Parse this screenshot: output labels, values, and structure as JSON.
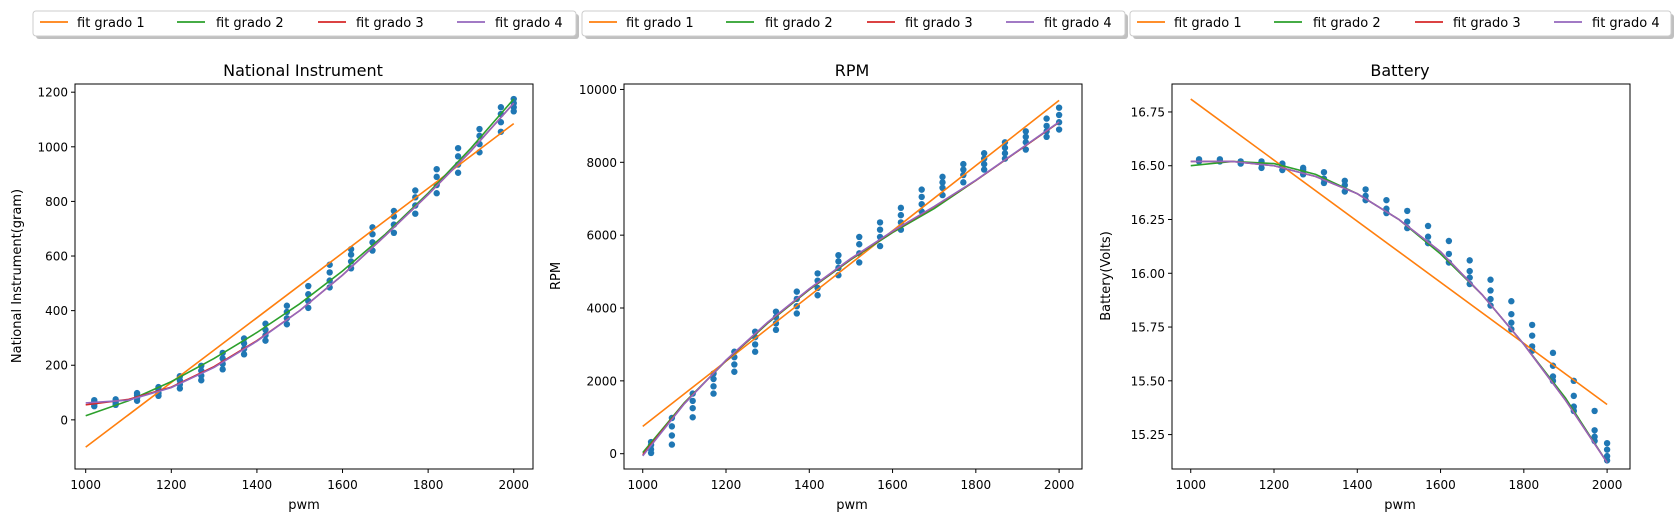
{
  "figure": {
    "background": "#ffffff",
    "fit_colors": [
      "#ff7f0e",
      "#2ca02c",
      "#d62728",
      "#9467bd"
    ],
    "point_color": "#1f77b4"
  },
  "chart_data": [
    {
      "type": "scatter",
      "title": "National Instrument",
      "xlabel": "pwm",
      "ylabel": "National Instrument(gram)",
      "xlim": [
        975,
        2045
      ],
      "ylim": [
        -180,
        1230
      ],
      "xticks": [
        1000,
        1200,
        1400,
        1600,
        1800,
        2000
      ],
      "yticks": [
        0,
        200,
        400,
        600,
        800,
        1000,
        1200
      ],
      "ytick_labels": [
        "0",
        "200",
        "400",
        "600",
        "800",
        "1000",
        "1200"
      ],
      "legend_position": "above",
      "legend": [
        "fit grado 1",
        "fit grado 2",
        "fit grado 3",
        "fit grado 4"
      ],
      "scatter": [
        {
          "x": 1020,
          "y": [
            50,
            58,
            65,
            72
          ]
        },
        {
          "x": 1070,
          "y": [
            55,
            62,
            68,
            75
          ]
        },
        {
          "x": 1120,
          "y": [
            70,
            80,
            90,
            98
          ]
        },
        {
          "x": 1170,
          "y": [
            88,
            98,
            110,
            120
          ]
        },
        {
          "x": 1220,
          "y": [
            115,
            130,
            145,
            160
          ]
        },
        {
          "x": 1270,
          "y": [
            145,
            162,
            180,
            198
          ]
        },
        {
          "x": 1320,
          "y": [
            185,
            205,
            225,
            245
          ]
        },
        {
          "x": 1370,
          "y": [
            240,
            260,
            280,
            298
          ]
        },
        {
          "x": 1420,
          "y": [
            290,
            310,
            330,
            352
          ]
        },
        {
          "x": 1470,
          "y": [
            350,
            372,
            395,
            418
          ]
        },
        {
          "x": 1520,
          "y": [
            410,
            435,
            460,
            490
          ]
        },
        {
          "x": 1570,
          "y": [
            485,
            510,
            540,
            568
          ]
        },
        {
          "x": 1620,
          "y": [
            555,
            580,
            605,
            625
          ]
        },
        {
          "x": 1670,
          "y": [
            620,
            650,
            680,
            705
          ]
        },
        {
          "x": 1720,
          "y": [
            685,
            715,
            745,
            765
          ]
        },
        {
          "x": 1770,
          "y": [
            755,
            785,
            815,
            840
          ]
        },
        {
          "x": 1820,
          "y": [
            830,
            860,
            890,
            918
          ]
        },
        {
          "x": 1870,
          "y": [
            905,
            935,
            965,
            995
          ]
        },
        {
          "x": 1920,
          "y": [
            980,
            1010,
            1040,
            1065
          ]
        },
        {
          "x": 1970,
          "y": [
            1055,
            1090,
            1120,
            1145
          ]
        },
        {
          "x": 2000,
          "y": [
            1130,
            1145,
            1160,
            1175
          ]
        }
      ],
      "fits": [
        {
          "name": "fit grado 1",
          "x": [
            1000,
            2000
          ],
          "y": [
            -100,
            1085
          ]
        },
        {
          "name": "fit grado 2",
          "x": [
            1000,
            1100,
            1200,
            1300,
            1400,
            1500,
            1600,
            1700,
            1800,
            1900,
            2000
          ],
          "y": [
            15,
            70,
            140,
            225,
            320,
            425,
            545,
            680,
            830,
            995,
            1175
          ]
        },
        {
          "name": "fit grado 3",
          "x": [
            1000,
            1100,
            1200,
            1300,
            1400,
            1500,
            1600,
            1700,
            1800,
            1900,
            2000
          ],
          "y": [
            55,
            75,
            120,
            195,
            290,
            400,
            530,
            675,
            825,
            985,
            1160
          ]
        },
        {
          "name": "fit grado 4",
          "x": [
            1000,
            1100,
            1200,
            1300,
            1400,
            1500,
            1600,
            1700,
            1800,
            1900,
            2000
          ],
          "y": [
            62,
            72,
            118,
            192,
            288,
            400,
            530,
            675,
            825,
            985,
            1160
          ]
        }
      ]
    },
    {
      "type": "scatter",
      "title": "RPM",
      "xlabel": "pwm",
      "ylabel": "RPM",
      "xlim": [
        955,
        2055
      ],
      "ylim": [
        -420,
        10150
      ],
      "xticks": [
        1000,
        1200,
        1400,
        1600,
        1800,
        2000
      ],
      "yticks": [
        0,
        2000,
        4000,
        6000,
        8000,
        10000
      ],
      "ytick_labels": [
        "0",
        "2000",
        "4000",
        "6000",
        "8000",
        "10000"
      ],
      "legend_position": "above",
      "legend": [
        "fit grado 1",
        "fit grado 2",
        "fit grado 3",
        "fit grado 4"
      ],
      "scatter": [
        {
          "x": 1020,
          "y": [
            20,
            120,
            240,
            320
          ]
        },
        {
          "x": 1070,
          "y": [
            250,
            500,
            750,
            980
          ]
        },
        {
          "x": 1120,
          "y": [
            1000,
            1250,
            1450,
            1650
          ]
        },
        {
          "x": 1170,
          "y": [
            1650,
            1850,
            2050,
            2200
          ]
        },
        {
          "x": 1220,
          "y": [
            2250,
            2450,
            2650,
            2800
          ]
        },
        {
          "x": 1270,
          "y": [
            2800,
            3000,
            3200,
            3350
          ]
        },
        {
          "x": 1320,
          "y": [
            3400,
            3580,
            3750,
            3900
          ]
        },
        {
          "x": 1370,
          "y": [
            3850,
            4050,
            4250,
            4450
          ]
        },
        {
          "x": 1420,
          "y": [
            4350,
            4550,
            4750,
            4950
          ]
        },
        {
          "x": 1470,
          "y": [
            4900,
            5100,
            5280,
            5450
          ]
        },
        {
          "x": 1520,
          "y": [
            5250,
            5500,
            5750,
            5950
          ]
        },
        {
          "x": 1570,
          "y": [
            5700,
            5950,
            6150,
            6350
          ]
        },
        {
          "x": 1620,
          "y": [
            6150,
            6350,
            6550,
            6750
          ]
        },
        {
          "x": 1670,
          "y": [
            6650,
            6850,
            7050,
            7250
          ]
        },
        {
          "x": 1720,
          "y": [
            7100,
            7300,
            7450,
            7600
          ]
        },
        {
          "x": 1770,
          "y": [
            7450,
            7650,
            7800,
            7950
          ]
        },
        {
          "x": 1820,
          "y": [
            7800,
            7950,
            8100,
            8250
          ]
        },
        {
          "x": 1870,
          "y": [
            8100,
            8250,
            8400,
            8550
          ]
        },
        {
          "x": 1920,
          "y": [
            8350,
            8550,
            8700,
            8850
          ]
        },
        {
          "x": 1970,
          "y": [
            8700,
            8850,
            9000,
            9200
          ]
        },
        {
          "x": 2000,
          "y": [
            8900,
            9100,
            9300,
            9500
          ]
        }
      ],
      "fits": [
        {
          "name": "fit grado 1",
          "x": [
            1000,
            2000
          ],
          "y": [
            750,
            9700
          ]
        },
        {
          "name": "fit grado 2",
          "x": [
            1000,
            1100,
            1200,
            1300,
            1400,
            1500,
            1600,
            1700,
            1800,
            1900,
            2000
          ],
          "y": [
            30,
            1400,
            2550,
            3580,
            4500,
            5330,
            6070,
            6730,
            7500,
            8300,
            9100
          ]
        },
        {
          "name": "fit grado 3",
          "x": [
            1000,
            1100,
            1200,
            1300,
            1400,
            1500,
            1600,
            1700,
            1800,
            1900,
            2000
          ],
          "y": [
            -30,
            1380,
            2560,
            3600,
            4520,
            5350,
            6100,
            6780,
            7500,
            8300,
            9100
          ]
        },
        {
          "name": "fit grado 4",
          "x": [
            1000,
            1100,
            1200,
            1300,
            1400,
            1500,
            1600,
            1700,
            1800,
            1900,
            2000
          ],
          "y": [
            -60,
            1370,
            2570,
            3610,
            4530,
            5360,
            6110,
            6790,
            7510,
            8310,
            9110
          ]
        }
      ]
    },
    {
      "type": "scatter",
      "title": "Battery",
      "xlabel": "pwm",
      "ylabel": "Battery(Volts)",
      "xlim": [
        955,
        2055
      ],
      "ylim": [
        15.09,
        16.88
      ],
      "xticks": [
        1000,
        1200,
        1400,
        1600,
        1800,
        2000
      ],
      "yticks": [
        15.25,
        15.5,
        15.75,
        16.0,
        16.25,
        16.5,
        16.75
      ],
      "ytick_labels": [
        "15.25",
        "15.50",
        "15.75",
        "16.00",
        "16.25",
        "16.50",
        "16.75"
      ],
      "legend_position": "above",
      "legend": [
        "fit grado 1",
        "fit grado 2",
        "fit grado 3",
        "fit grado 4"
      ],
      "scatter": [
        {
          "x": 1020,
          "y": [
            16.52,
            16.53
          ]
        },
        {
          "x": 1070,
          "y": [
            16.52,
            16.53
          ]
        },
        {
          "x": 1120,
          "y": [
            16.51,
            16.52
          ]
        },
        {
          "x": 1170,
          "y": [
            16.49,
            16.51,
            16.52
          ]
        },
        {
          "x": 1220,
          "y": [
            16.48,
            16.5,
            16.51
          ]
        },
        {
          "x": 1270,
          "y": [
            16.46,
            16.48,
            16.49
          ]
        },
        {
          "x": 1320,
          "y": [
            16.42,
            16.44,
            16.47
          ]
        },
        {
          "x": 1370,
          "y": [
            16.38,
            16.41,
            16.43
          ]
        },
        {
          "x": 1420,
          "y": [
            16.34,
            16.36,
            16.39
          ]
        },
        {
          "x": 1470,
          "y": [
            16.28,
            16.3,
            16.34
          ]
        },
        {
          "x": 1520,
          "y": [
            16.21,
            16.24,
            16.29
          ]
        },
        {
          "x": 1570,
          "y": [
            16.14,
            16.17,
            16.22
          ]
        },
        {
          "x": 1620,
          "y": [
            16.05,
            16.09,
            16.15
          ]
        },
        {
          "x": 1670,
          "y": [
            15.95,
            15.98,
            16.01,
            16.06
          ]
        },
        {
          "x": 1720,
          "y": [
            15.85,
            15.88,
            15.92,
            15.97
          ]
        },
        {
          "x": 1770,
          "y": [
            15.74,
            15.77,
            15.81,
            15.87
          ]
        },
        {
          "x": 1820,
          "y": [
            15.64,
            15.66,
            15.71,
            15.76
          ]
        },
        {
          "x": 1870,
          "y": [
            15.5,
            15.52,
            15.57,
            15.63
          ]
        },
        {
          "x": 1920,
          "y": [
            15.36,
            15.38,
            15.43,
            15.5
          ]
        },
        {
          "x": 1970,
          "y": [
            15.22,
            15.24,
            15.27,
            15.36
          ]
        },
        {
          "x": 2000,
          "y": [
            15.13,
            15.15,
            15.18,
            15.21
          ]
        }
      ],
      "fits": [
        {
          "name": "fit grado 1",
          "x": [
            1000,
            2000
          ],
          "y": [
            16.81,
            15.39
          ]
        },
        {
          "name": "fit grado 2",
          "x": [
            1000,
            1100,
            1200,
            1300,
            1400,
            1500,
            1600,
            1700,
            1800,
            1900,
            2000
          ],
          "y": [
            16.5,
            16.52,
            16.51,
            16.46,
            16.37,
            16.25,
            16.09,
            15.9,
            15.67,
            15.42,
            15.12
          ]
        },
        {
          "name": "fit grado 3",
          "x": [
            1000,
            1100,
            1200,
            1300,
            1400,
            1500,
            1600,
            1700,
            1800,
            1900,
            2000
          ],
          "y": [
            16.52,
            16.52,
            16.5,
            16.45,
            16.37,
            16.25,
            16.1,
            15.9,
            15.67,
            15.41,
            15.12
          ]
        },
        {
          "name": "fit grado 4",
          "x": [
            1000,
            1100,
            1200,
            1300,
            1400,
            1500,
            1600,
            1700,
            1800,
            1900,
            2000
          ],
          "y": [
            16.52,
            16.52,
            16.5,
            16.45,
            16.37,
            16.25,
            16.1,
            15.9,
            15.67,
            15.41,
            15.12
          ]
        }
      ]
    }
  ]
}
